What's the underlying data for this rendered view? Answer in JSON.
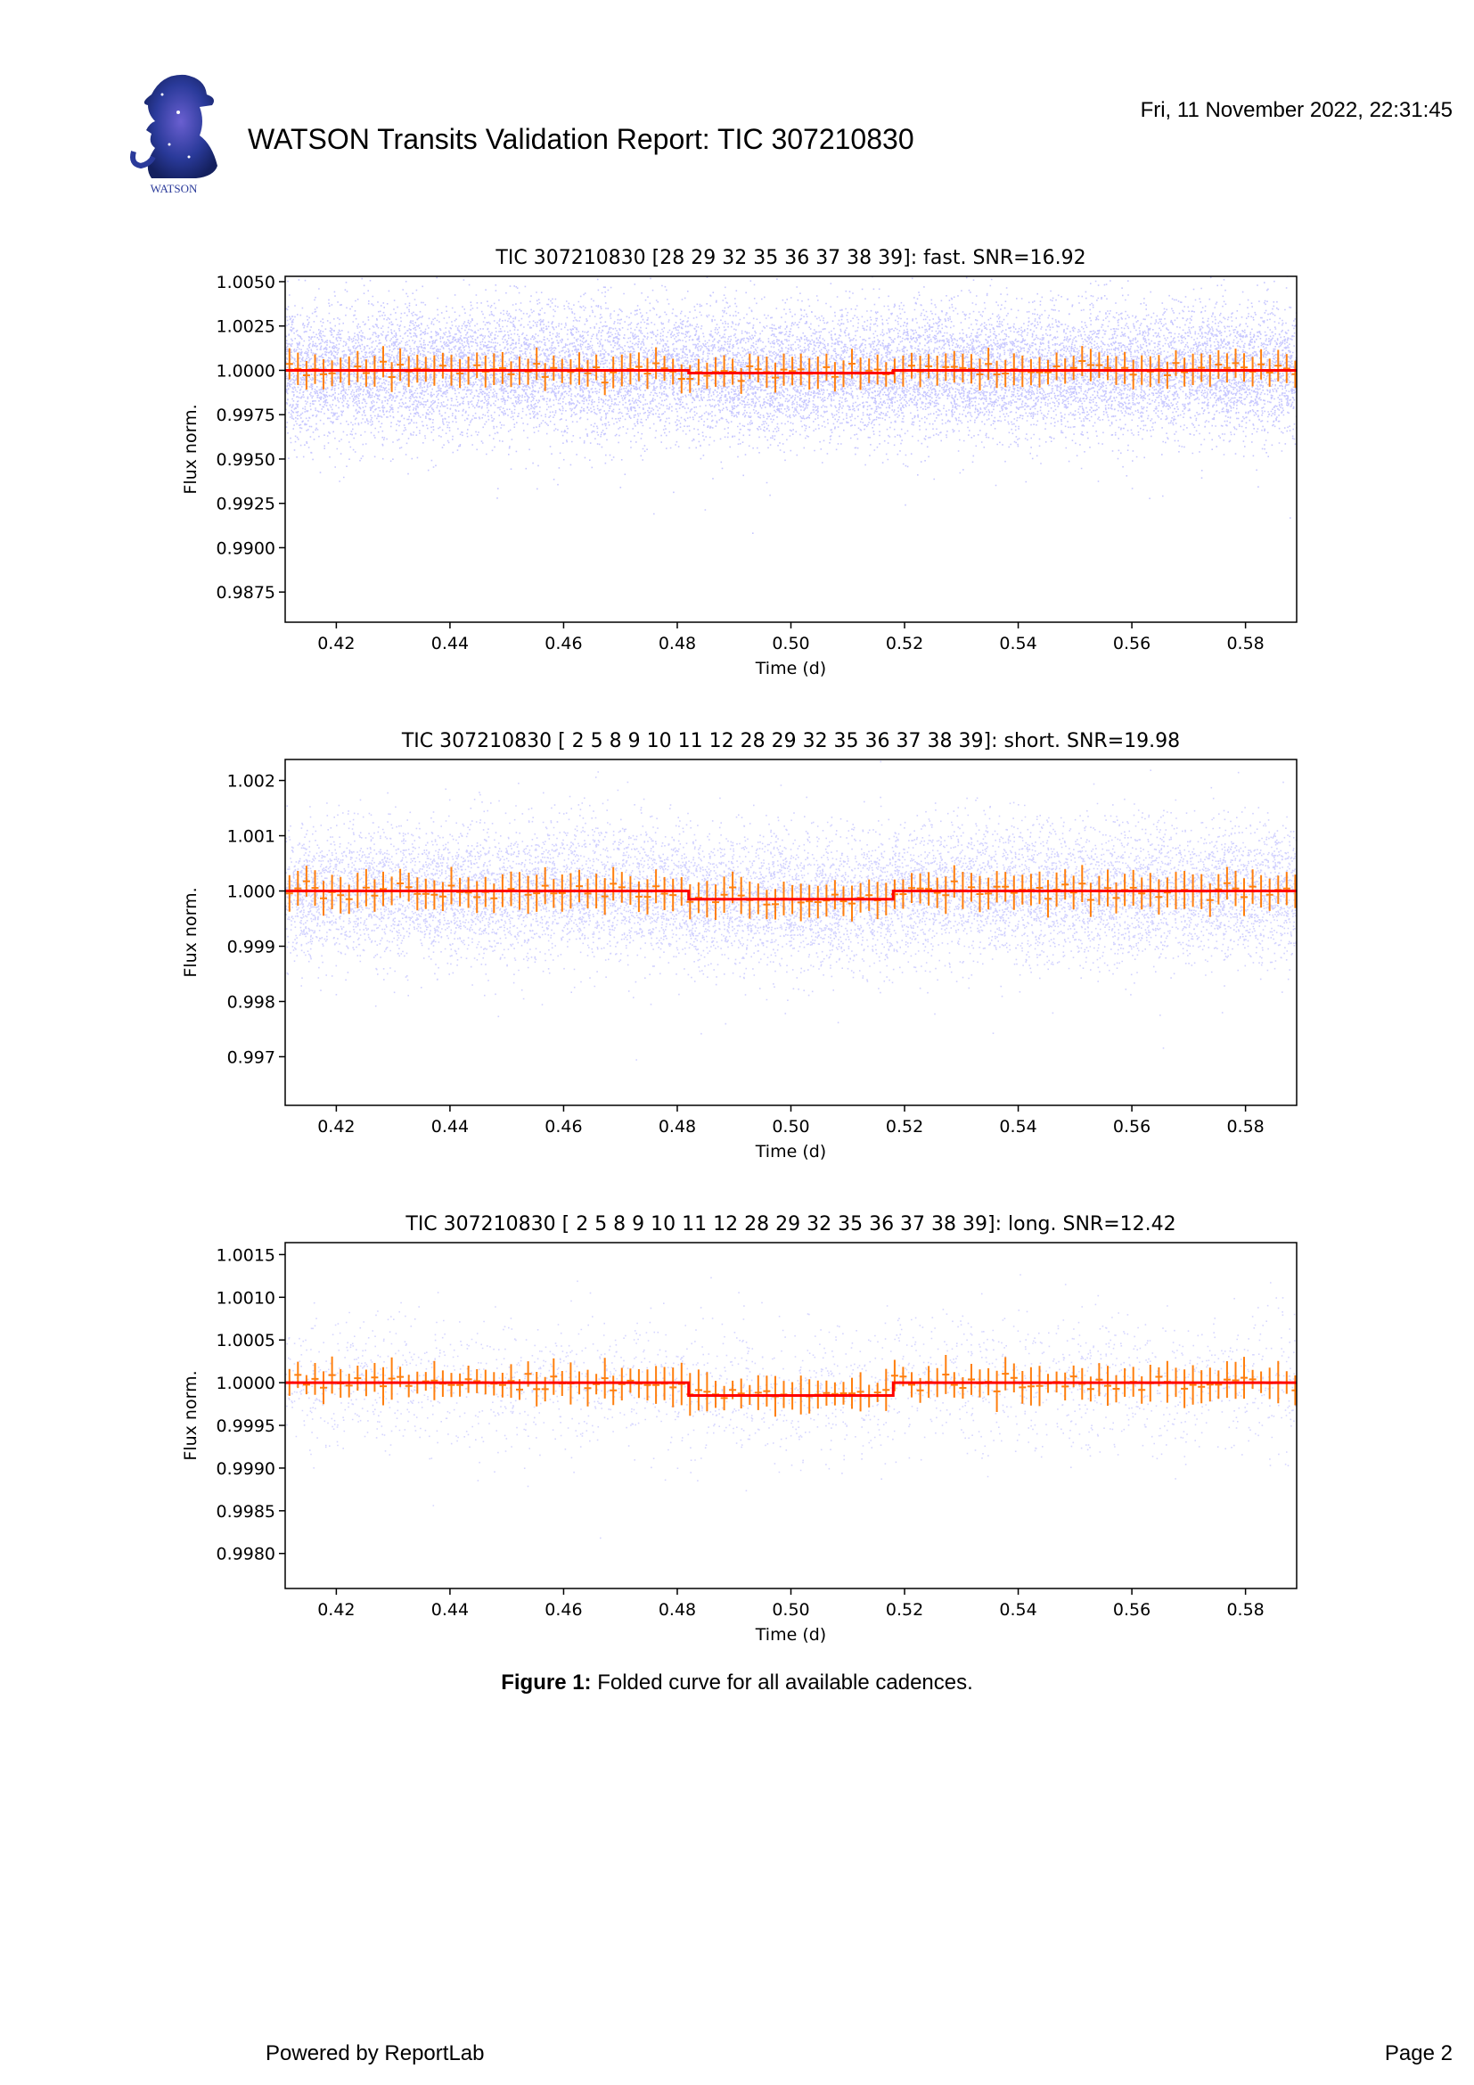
{
  "header": {
    "title": "WATSON Transits Validation Report: TIC 307210830",
    "date": "Fri, 11 November 2022, 22:31:45",
    "logo_text": "WATSON"
  },
  "chart_data": [
    {
      "type": "scatter",
      "title": "TIC 307210830 [28 29 32 35 36 37 38 39]: fast. SNR=16.92",
      "xlabel": "Time (d)",
      "ylabel": "Flux norm.",
      "xlim": [
        0.411,
        0.589
      ],
      "ylim": [
        0.9858,
        1.0053
      ],
      "xticks": [
        0.42,
        0.44,
        0.46,
        0.48,
        0.5,
        0.52,
        0.54,
        0.56,
        0.58
      ],
      "yticks": [
        0.9875,
        0.99,
        0.9925,
        0.995,
        0.9975,
        1.0,
        1.0025,
        1.005
      ],
      "xtick_labels": [
        "0.42",
        "0.44",
        "0.46",
        "0.48",
        "0.50",
        "0.52",
        "0.54",
        "0.56",
        "0.58"
      ],
      "ytick_labels": [
        "0.9875",
        "0.9900",
        "0.9925",
        "0.9950",
        "0.9975",
        "1.0000",
        "1.0025",
        "1.0050"
      ],
      "series": [
        {
          "kind": "raw points",
          "color": "#0000ff",
          "center": 1.0,
          "spread": 0.0018
        },
        {
          "kind": "binned points with error bars",
          "color": "#ff7f0e",
          "bin_width_d": 0.0015,
          "errorbar_half_height": 0.0008,
          "binned_flux": [
            1.0,
            1.0,
            1.0,
            1.0,
            1.0,
            0.99985,
            0.99985,
            0.9998,
            0.9998,
            0.99985,
            0.99985,
            1.0,
            1.0,
            1.0
          ]
        },
        {
          "kind": "model step",
          "color": "#ff0000",
          "transit_start_d": 0.482,
          "transit_end_d": 0.518,
          "depth": 0.00015
        }
      ]
    },
    {
      "type": "scatter",
      "title": "TIC 307210830 [ 2  5  8  9 10 11 12 28 29 32 35 36 37 38 39]: short. SNR=19.98",
      "xlabel": "Time (d)",
      "ylabel": "Flux norm.",
      "xlim": [
        0.411,
        0.589
      ],
      "ylim": [
        0.99612,
        1.00238
      ],
      "xticks": [
        0.42,
        0.44,
        0.46,
        0.48,
        0.5,
        0.52,
        0.54,
        0.56,
        0.58
      ],
      "yticks": [
        0.997,
        0.998,
        0.999,
        1.0,
        1.001,
        1.002
      ],
      "xtick_labels": [
        "0.42",
        "0.44",
        "0.46",
        "0.48",
        "0.50",
        "0.52",
        "0.54",
        "0.56",
        "0.58"
      ],
      "ytick_labels": [
        "0.997",
        "0.998",
        "0.999",
        "1.000",
        "1.001",
        "1.002"
      ],
      "series": [
        {
          "kind": "raw points",
          "color": "#0000ff",
          "center": 1.0,
          "spread": 0.0006
        },
        {
          "kind": "binned points with error bars",
          "color": "#ff7f0e",
          "bin_width_d": 0.0015,
          "errorbar_half_height": 0.0003,
          "binned_flux": [
            1.00005,
            1.00005,
            1.0,
            1.0,
            1.0,
            0.99985,
            0.99985,
            0.99985,
            0.99985,
            0.99985,
            1.0,
            1.0,
            1.00005,
            1.00005
          ]
        },
        {
          "kind": "model step",
          "color": "#ff0000",
          "transit_start_d": 0.482,
          "transit_end_d": 0.518,
          "depth": 0.00015
        }
      ]
    },
    {
      "type": "scatter",
      "title": "TIC 307210830 [ 2  5  8  9 10 11 12 28 29 32 35 36 37 38 39]: long. SNR=12.42",
      "xlabel": "Time (d)",
      "ylabel": "Flux norm.",
      "xlim": [
        0.411,
        0.589
      ],
      "ylim": [
        0.99759,
        1.00164
      ],
      "xticks": [
        0.42,
        0.44,
        0.46,
        0.48,
        0.5,
        0.52,
        0.54,
        0.56,
        0.58
      ],
      "yticks": [
        0.998,
        0.9985,
        0.999,
        0.9995,
        1.0,
        1.0005,
        1.001,
        1.0015
      ],
      "xtick_labels": [
        "0.42",
        "0.44",
        "0.46",
        "0.48",
        "0.50",
        "0.52",
        "0.54",
        "0.56",
        "0.58"
      ],
      "ytick_labels": [
        "0.9980",
        "0.9985",
        "0.9990",
        "0.9995",
        "1.0000",
        "1.0005",
        "1.0010",
        "1.0015"
      ],
      "series": [
        {
          "kind": "raw points",
          "color": "#0000ff",
          "center": 1.0,
          "spread": 0.0004
        },
        {
          "kind": "binned points with error bars",
          "color": "#ff7f0e",
          "bin_width_d": 0.0015,
          "errorbar_half_height": 0.00018,
          "binned_flux": [
            1.0,
            1.0,
            1.0,
            1.0,
            1.0,
            0.99985,
            0.99985,
            0.99985,
            0.99985,
            0.99985,
            1.0,
            1.0,
            1.0,
            1.0
          ]
        },
        {
          "kind": "model step",
          "color": "#ff0000",
          "transit_start_d": 0.482,
          "transit_end_d": 0.518,
          "depth": 0.00015
        }
      ]
    }
  ],
  "caption": {
    "label": "Figure 1:",
    "text": " Folded curve for all available cadences."
  },
  "footer": {
    "left": "Powered by ReportLab",
    "right": "Page 2"
  }
}
